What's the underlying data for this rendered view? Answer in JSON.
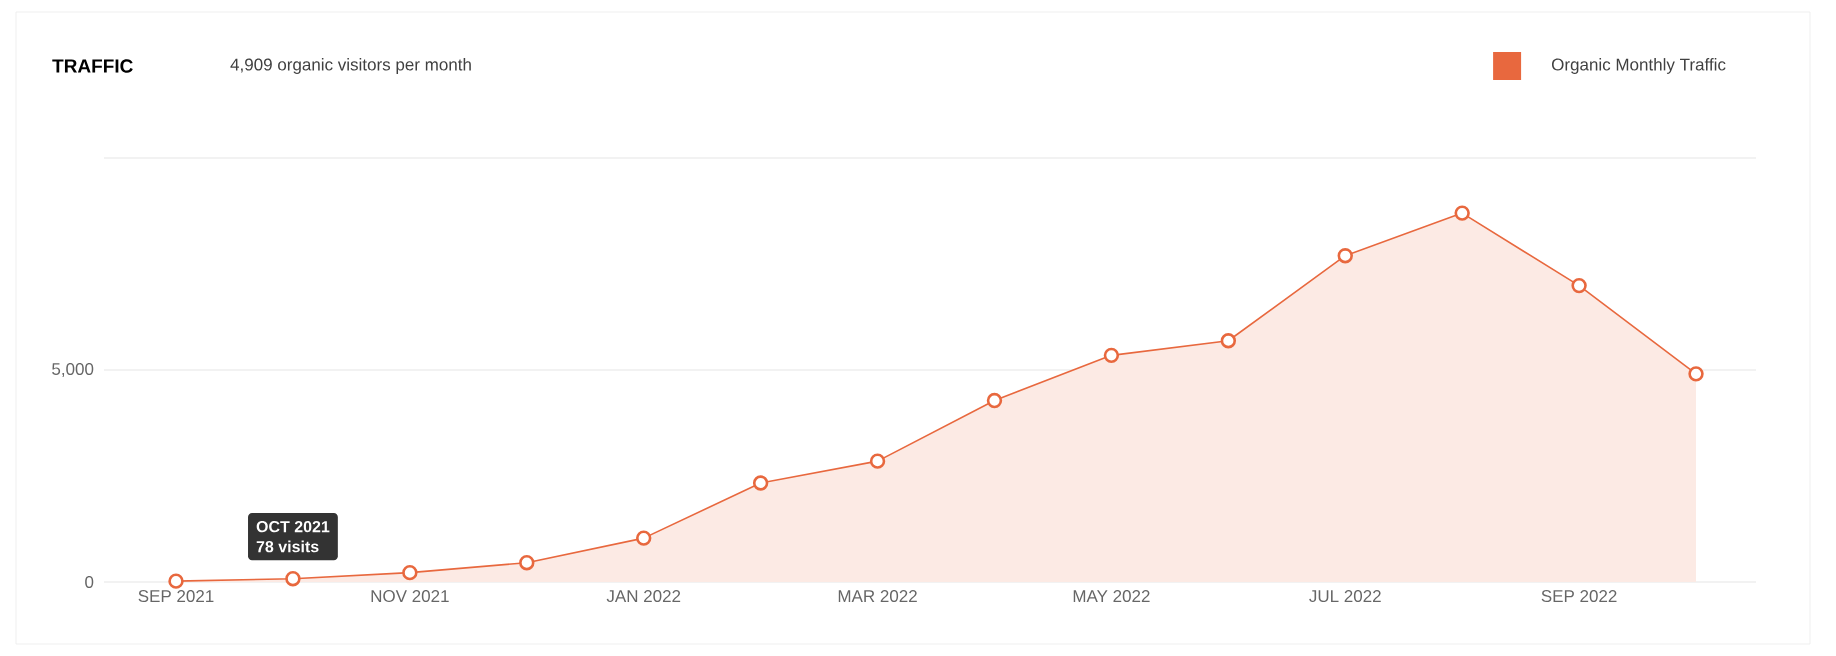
{
  "chart_data": {
    "type": "area",
    "title": "TRAFFIC",
    "subtitle": "4,909 organic visitors per month",
    "categories": [
      "SEP 2021",
      null,
      "NOV 2021",
      null,
      "JAN 2022",
      null,
      "MAR 2022",
      null,
      "MAY 2022",
      null,
      "JUL 2022",
      null,
      "SEP 2022",
      null
    ],
    "series": [
      {
        "name": "Organic Monthly Traffic",
        "color": "#e8683e",
        "values": [
          20,
          78,
          220,
          455,
          1035,
          2335,
          2850,
          4280,
          5345,
          5690,
          7695,
          8700,
          6990,
          4909
        ]
      }
    ],
    "ylim": [
      0,
      10000
    ],
    "yticks": [
      0,
      {
        "value": 5000,
        "label": "5,000"
      },
      {
        "value": 10000,
        "label": null
      }
    ],
    "grid": "y",
    "legend": "top right",
    "marker": "circle",
    "annotations": [
      "OCT 2021",
      "78 visits"
    ]
  }
}
